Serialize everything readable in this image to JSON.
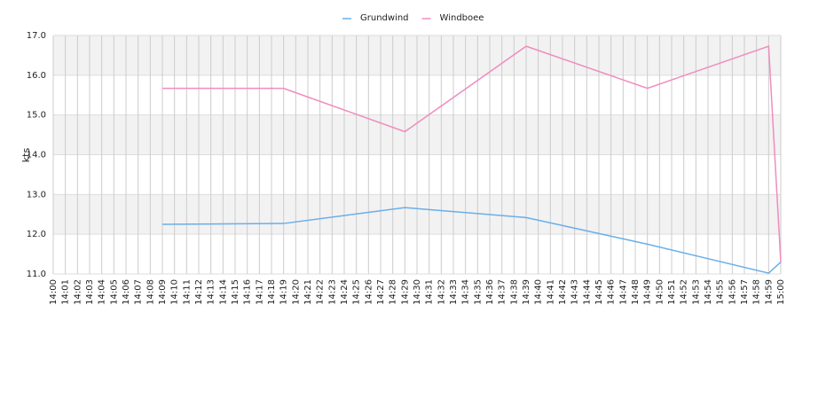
{
  "chart_data": {
    "type": "line",
    "y_label": "kts",
    "categories": [
      "14:00",
      "14:01",
      "14:02",
      "14:03",
      "14:04",
      "14:05",
      "14:06",
      "14:07",
      "14:08",
      "14:09",
      "14:10",
      "14:11",
      "14:12",
      "14:13",
      "14:14",
      "14:15",
      "14:16",
      "14:17",
      "14:18",
      "14:19",
      "14:20",
      "14:21",
      "14:22",
      "14:23",
      "14:24",
      "14:25",
      "14:26",
      "14:27",
      "14:28",
      "14:29",
      "14:30",
      "14:31",
      "14:32",
      "14:33",
      "14:34",
      "14:35",
      "14:36",
      "14:37",
      "14:38",
      "14:39",
      "14:40",
      "14:41",
      "14:42",
      "14:43",
      "14:44",
      "14:45",
      "14:46",
      "14:47",
      "14:48",
      "14:49",
      "14:50",
      "14:51",
      "14:52",
      "14:53",
      "14:54",
      "14:55",
      "14:56",
      "14:57",
      "14:58",
      "14:59",
      "15:00"
    ],
    "series": [
      {
        "name": "Grundwind",
        "color": "#6aaee8",
        "x": [
          "14:09",
          "14:19",
          "14:29",
          "14:39",
          "14:49",
          "14:59",
          "15:00"
        ],
        "values": [
          12.25,
          12.27,
          12.67,
          12.42,
          11.75,
          11.02,
          11.3
        ]
      },
      {
        "name": "Windboee",
        "color": "#f08cbf",
        "x": [
          "14:09",
          "14:19",
          "14:29",
          "14:39",
          "14:49",
          "14:59",
          "15:00"
        ],
        "values": [
          15.67,
          15.67,
          14.58,
          16.73,
          15.67,
          16.73,
          11.3
        ]
      }
    ],
    "ylim": [
      11,
      17
    ],
    "yticks": [
      {
        "value": 11,
        "label": "11.0"
      },
      {
        "value": 12,
        "label": "12.0"
      },
      {
        "value": 13,
        "label": "13.0"
      },
      {
        "value": 14,
        "label": "14.0"
      },
      {
        "value": 15,
        "label": "15.0"
      },
      {
        "value": 16,
        "label": "16.0"
      },
      {
        "value": 17,
        "label": "17.0"
      }
    ],
    "grid": true
  }
}
